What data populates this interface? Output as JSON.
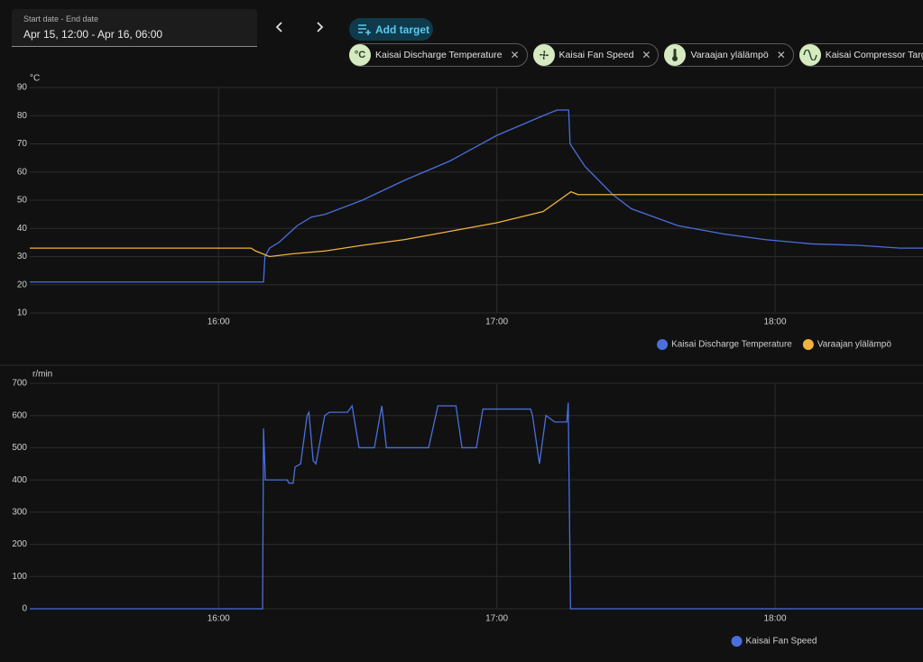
{
  "date_range": {
    "label": "Start date - End date",
    "value": "Apr 15, 12:00 - Apr 16, 06:00"
  },
  "add_target": "Add target",
  "targets": [
    {
      "icon": "°C",
      "name": "Kaisai Discharge Temperature"
    },
    {
      "name": "Kaisai Fan Speed"
    },
    {
      "name": "Varaajan ylälämpö"
    },
    {
      "name": "Kaisai Compressor Target Freq"
    }
  ],
  "chart_data": [
    {
      "type": "line",
      "y_unit": "°C",
      "xlim": [
        919.3,
        1111.9
      ],
      "ylim": [
        10,
        90
      ],
      "xticks": [
        {
          "value": 960,
          "label": "16:00"
        },
        {
          "value": 1020,
          "label": "17:00"
        },
        {
          "value": 1080,
          "label": "18:00"
        }
      ],
      "yticks": [
        10,
        20,
        30,
        40,
        50,
        60,
        70,
        80,
        90
      ],
      "grid": true,
      "series": [
        {
          "name": "Kaisai Discharge Temperature",
          "color": "#4a6fdc",
          "x": [
            919.3,
            969.7,
            970,
            971,
            973,
            975,
            977,
            980,
            983,
            991,
            1000,
            1010,
            1020,
            1030,
            1033,
            1035.5,
            1035.8,
            1039,
            1045,
            1049,
            1059,
            1069,
            1078,
            1088,
            1098,
            1107,
            1111.9
          ],
          "values": [
            21,
            21,
            30,
            33,
            35,
            38,
            41,
            44,
            45,
            50,
            57,
            64,
            73,
            80,
            82,
            82,
            70,
            62,
            52,
            47,
            41,
            38,
            36,
            34.5,
            34,
            33,
            33
          ]
        },
        {
          "name": "Varaajan ylälämpö",
          "color": "#f0b33c",
          "x": [
            919.3,
            967,
            968,
            971,
            976,
            983,
            991,
            1000,
            1010,
            1020,
            1030,
            1036,
            1037.5,
            1111.9
          ],
          "values": [
            33,
            33,
            32,
            30,
            31,
            32,
            34,
            36,
            39,
            42,
            46,
            53,
            52,
            52
          ]
        }
      ]
    },
    {
      "type": "line",
      "y_unit": "r/min",
      "xlim": [
        919.3,
        1111.9
      ],
      "ylim": [
        0,
        700
      ],
      "xticks": [
        {
          "value": 960,
          "label": "16:00"
        },
        {
          "value": 1020,
          "label": "17:00"
        },
        {
          "value": 1080,
          "label": "18:00"
        }
      ],
      "yticks": [
        0,
        100,
        200,
        300,
        400,
        500,
        600,
        700
      ],
      "grid": true,
      "series": [
        {
          "name": "Kaisai Fan Speed",
          "color": "#4a6fdc",
          "x": [
            919.3,
            969.5,
            969.7,
            970.1,
            974.8,
            975.2,
            976.1,
            976.5,
            977.7,
            979.1,
            979.5,
            980.4,
            981.0,
            982.9,
            983.9,
            987.8,
            988.8,
            990.3,
            993.6,
            995.2,
            996.2,
            1005.3,
            1007.3,
            1011.2,
            1012.5,
            1015.6,
            1017.0,
            1027.3,
            1027.7,
            1029.2,
            1030.6,
            1032.5,
            1035.1,
            1035.4,
            1035.9,
            1111.9
          ],
          "values": [
            0,
            0,
            560,
            400,
            400,
            390,
            390,
            440,
            450,
            600,
            610,
            460,
            450,
            600,
            610,
            610,
            630,
            500,
            500,
            630,
            500,
            500,
            630,
            630,
            500,
            500,
            620,
            620,
            600,
            450,
            600,
            580,
            580,
            640,
            0,
            0
          ]
        }
      ]
    }
  ]
}
